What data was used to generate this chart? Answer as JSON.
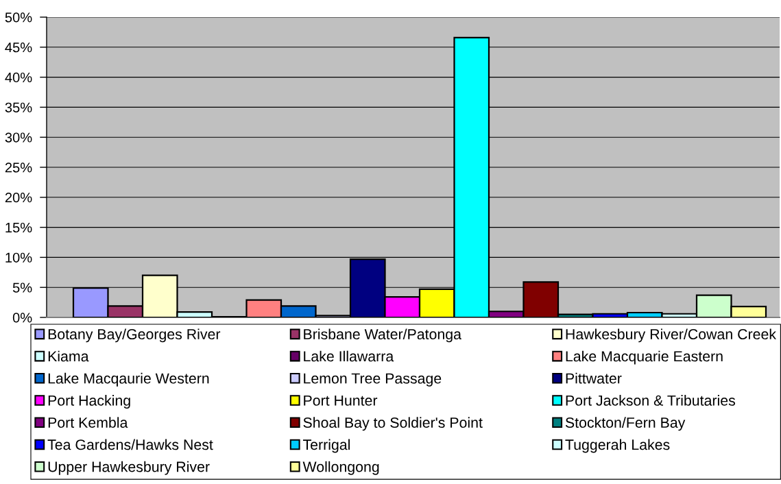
{
  "chart_data": {
    "type": "bar",
    "categories": [
      null
    ],
    "series": [
      {
        "name": "Botany Bay/Georges River",
        "color": "#9999ff",
        "values": [
          4.9
        ]
      },
      {
        "name": "Brisbane Water/Patonga",
        "color": "#993366",
        "values": [
          1.9
        ]
      },
      {
        "name": "Hawkesbury River/Cowan Creek",
        "color": "#ffffcc",
        "values": [
          7.0
        ]
      },
      {
        "name": "Kiama",
        "color": "#ccffff",
        "values": [
          0.9
        ]
      },
      {
        "name": "Lake Illawarra",
        "color": "#660066",
        "values": [
          0.1
        ]
      },
      {
        "name": "Lake Macquarie Eastern",
        "color": "#ff8080",
        "values": [
          2.9
        ]
      },
      {
        "name": "Lake Macqaurie Western",
        "color": "#0066cc",
        "values": [
          1.9
        ]
      },
      {
        "name": "Lemon Tree Passage",
        "color": "#ccccff",
        "values": [
          0.3
        ]
      },
      {
        "name": "Pittwater",
        "color": "#000080",
        "values": [
          9.7
        ]
      },
      {
        "name": "Port Hacking",
        "color": "#ff00ff",
        "values": [
          3.4
        ]
      },
      {
        "name": "Port Hunter",
        "color": "#ffff00",
        "values": [
          4.7
        ]
      },
      {
        "name": "Port Jackson & Tributaries",
        "color": "#00ffff",
        "values": [
          46.6
        ]
      },
      {
        "name": "Port Kembla",
        "color": "#800080",
        "values": [
          1.0
        ]
      },
      {
        "name": "Shoal Bay to Soldier's Point",
        "color": "#800000",
        "values": [
          5.9
        ]
      },
      {
        "name": "Stockton/Fern Bay",
        "color": "#008080",
        "values": [
          0.5
        ]
      },
      {
        "name": "Tea Gardens/Hawks Nest",
        "color": "#0000ff",
        "values": [
          0.6
        ]
      },
      {
        "name": "Terrigal",
        "color": "#00ccff",
        "values": [
          0.8
        ]
      },
      {
        "name": "Tuggerah Lakes",
        "color": "#ccffff",
        "values": [
          0.6
        ]
      },
      {
        "name": "Upper Hawkesbury River",
        "color": "#ccffcc",
        "values": [
          3.7
        ]
      },
      {
        "name": "Wollongong",
        "color": "#ffff99",
        "values": [
          1.8
        ]
      }
    ],
    "ylim": [
      0,
      50
    ],
    "yticks": [
      {
        "value": 0,
        "label": "0%"
      },
      {
        "value": 5,
        "label": "5%"
      },
      {
        "value": 10,
        "label": "10%"
      },
      {
        "value": 15,
        "label": "15%"
      },
      {
        "value": 20,
        "label": "20%"
      },
      {
        "value": 25,
        "label": "25%"
      },
      {
        "value": 30,
        "label": "30%"
      },
      {
        "value": 35,
        "label": "35%"
      },
      {
        "value": 40,
        "label": "40%"
      },
      {
        "value": 45,
        "label": "45%"
      },
      {
        "value": 50,
        "label": "50%"
      }
    ],
    "grid": "y",
    "legend": "bottom",
    "tick_labels": "y"
  }
}
